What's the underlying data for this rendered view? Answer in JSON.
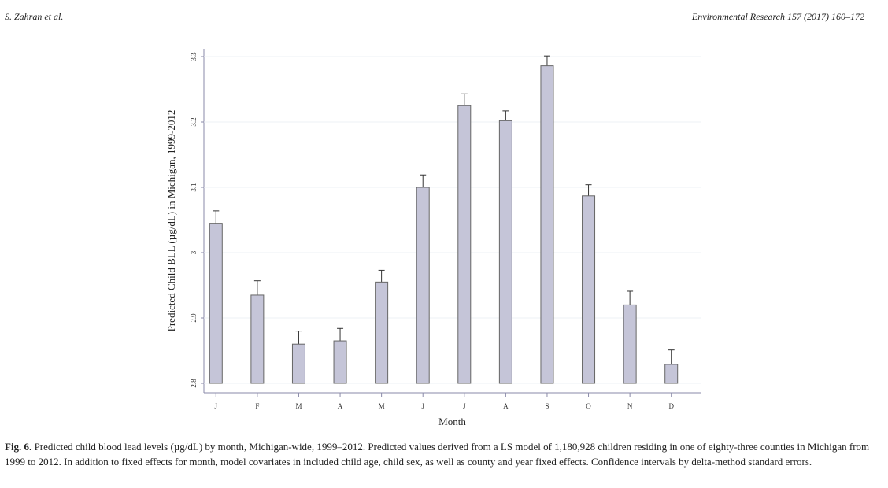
{
  "header": {
    "authors": "S. Zahran et al.",
    "journal": "Environmental Research 157 (2017) 160–172"
  },
  "caption": {
    "label": "Fig. 6.",
    "text": " Predicted child blood lead levels (µg/dL) by month, Michigan-wide, 1999–2012. Predicted values derived from a LS model of 1,180,928 children residing in one of eighty-three counties in Michigan from 1999 to 2012. In addition to fixed effects for month, model covariates in included child age, child sex, as well as county and year fixed effects. Confidence intervals by delta-method standard errors."
  },
  "chart_data": {
    "type": "bar",
    "xlabel": "Month",
    "ylabel": "Predicted Child BLL (µg/dL) in Michigan, 1999-2012",
    "ylim": [
      2.8,
      3.3
    ],
    "yticks": [
      "2.8",
      "2.9",
      "3",
      "3.1",
      "3.2",
      "3.3"
    ],
    "grid": true,
    "bar_color": "#c5c5d8",
    "categories": [
      "J",
      "F",
      "M",
      "A",
      "M",
      "J",
      "J",
      "A",
      "S",
      "O",
      "N",
      "D"
    ],
    "values": [
      3.045,
      2.935,
      2.86,
      2.865,
      2.955,
      3.1,
      3.225,
      3.202,
      3.286,
      3.087,
      2.92,
      2.829
    ],
    "ci_upper": [
      3.064,
      2.957,
      2.88,
      2.884,
      2.973,
      3.119,
      3.243,
      3.217,
      3.301,
      3.104,
      2.941,
      2.851
    ]
  }
}
